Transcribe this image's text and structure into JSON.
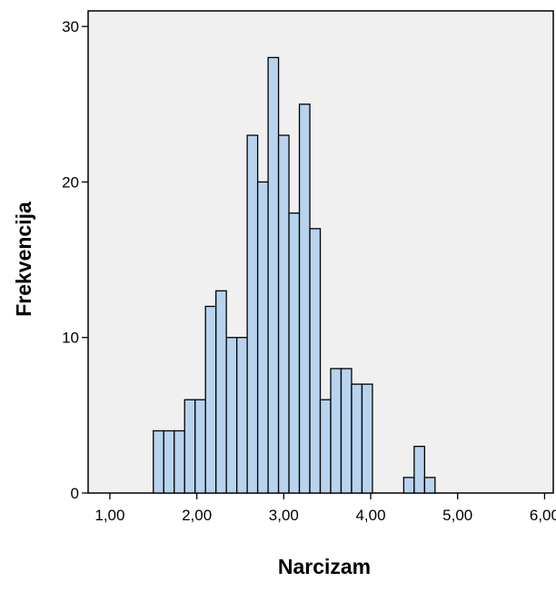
{
  "chart_data": {
    "type": "bar",
    "subtype": "histogram",
    "xlabel": "Narcizam",
    "ylabel": "Frekvencija",
    "xlim": [
      0.75,
      6.1
    ],
    "ylim": [
      0,
      31
    ],
    "bin_width": 0.12,
    "bins": [
      {
        "start": 1.5,
        "count": 4
      },
      {
        "start": 1.62,
        "count": 4
      },
      {
        "start": 1.74,
        "count": 4
      },
      {
        "start": 1.86,
        "count": 6
      },
      {
        "start": 1.98,
        "count": 6
      },
      {
        "start": 2.1,
        "count": 12
      },
      {
        "start": 2.22,
        "count": 13
      },
      {
        "start": 2.34,
        "count": 10
      },
      {
        "start": 2.46,
        "count": 10
      },
      {
        "start": 2.58,
        "count": 23
      },
      {
        "start": 2.7,
        "count": 20
      },
      {
        "start": 2.82,
        "count": 28
      },
      {
        "start": 2.94,
        "count": 23
      },
      {
        "start": 3.06,
        "count": 18
      },
      {
        "start": 3.18,
        "count": 25
      },
      {
        "start": 3.3,
        "count": 17
      },
      {
        "start": 3.42,
        "count": 6
      },
      {
        "start": 3.54,
        "count": 8
      },
      {
        "start": 3.66,
        "count": 8
      },
      {
        "start": 3.78,
        "count": 7
      },
      {
        "start": 3.9,
        "count": 7
      },
      {
        "start": 4.02,
        "count": 0
      },
      {
        "start": 4.14,
        "count": 0
      },
      {
        "start": 4.26,
        "count": 0
      },
      {
        "start": 4.38,
        "count": 1
      },
      {
        "start": 4.5,
        "count": 3
      },
      {
        "start": 4.62,
        "count": 1
      }
    ],
    "x_ticks": [
      {
        "value": 1,
        "label": "1,00"
      },
      {
        "value": 2,
        "label": "2,00"
      },
      {
        "value": 3,
        "label": "3,00"
      },
      {
        "value": 4,
        "label": "4,00"
      },
      {
        "value": 5,
        "label": "5,00"
      },
      {
        "value": 6,
        "label": "6,00"
      }
    ],
    "y_ticks": [
      {
        "value": 0,
        "label": "0"
      },
      {
        "value": 10,
        "label": "10"
      },
      {
        "value": 20,
        "label": "20"
      },
      {
        "value": 30,
        "label": "30"
      }
    ],
    "grid": false,
    "colors": {
      "bar_fill": "#b7d3ee",
      "bar_stroke": "#000000",
      "plot_background": "#f0f0f0"
    }
  }
}
